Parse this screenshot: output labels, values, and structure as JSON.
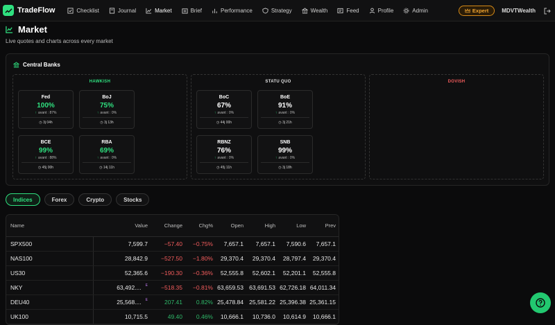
{
  "app": {
    "name": "TradeFlow",
    "user": "MDVTWealth",
    "badge": "Expert"
  },
  "nav": [
    {
      "label": "Checklist",
      "icon": "checklist-icon"
    },
    {
      "label": "Journal",
      "icon": "journal-icon"
    },
    {
      "label": "Market",
      "icon": "chart-line-icon",
      "active": true
    },
    {
      "label": "Brief",
      "icon": "brief-icon"
    },
    {
      "label": "Performance",
      "icon": "bar-chart-icon"
    },
    {
      "label": "Strategy",
      "icon": "shield-icon"
    },
    {
      "label": "Wealth",
      "icon": "bank-icon"
    },
    {
      "label": "Feed",
      "icon": "feed-icon"
    },
    {
      "label": "Profile",
      "icon": "user-icon"
    },
    {
      "label": "Admin",
      "icon": "gear-icon"
    }
  ],
  "page": {
    "title": "Market",
    "subtitle": "Live quotes and charts across every market"
  },
  "central_banks": {
    "title": "Central Banks",
    "columns": {
      "hawkish": {
        "label": "HAWKISH",
        "color": "#2fe07f"
      },
      "statu_quo": {
        "label": "STATU QUO",
        "color": "#e0e0e0"
      },
      "dovish": {
        "label": "DOVISH",
        "color": "#f25c5c"
      }
    },
    "banks": [
      {
        "name": "Fed",
        "pct": "100%",
        "avant": "avant : 87%",
        "time": "3j 04h",
        "column": "hawkish"
      },
      {
        "name": "BoJ",
        "pct": "75%",
        "avant": "avant : 0%",
        "time": "3j 13h",
        "column": "hawkish"
      },
      {
        "name": "BCE",
        "pct": "99%",
        "avant": "avant : 88%",
        "time": "45j 00h",
        "column": "hawkish"
      },
      {
        "name": "RBA",
        "pct": "69%",
        "avant": "avant : 0%",
        "time": "14j 11h",
        "column": "hawkish"
      },
      {
        "name": "BoC",
        "pct": "67%",
        "avant": "avant : 0%",
        "time": "44j 00h",
        "column": "statu_quo"
      },
      {
        "name": "BoE",
        "pct": "91%",
        "avant": "avant : 0%",
        "time": "3j 21h",
        "column": "statu_quo"
      },
      {
        "name": "RBNZ",
        "pct": "76%",
        "avant": "avant : 0%",
        "time": "45j 11h",
        "column": "statu_quo"
      },
      {
        "name": "SNB",
        "pct": "99%",
        "avant": "avant : 0%",
        "time": "3j 18h",
        "column": "statu_quo"
      }
    ]
  },
  "tabs": [
    "Indices",
    "Forex",
    "Crypto",
    "Stocks"
  ],
  "table": {
    "headers": [
      "Name",
      "Value",
      "Change",
      "Chg%",
      "Open",
      "High",
      "Low",
      "Prev"
    ],
    "rows": [
      {
        "name": "SPX500",
        "value": "7,599.7",
        "change": "−57.40",
        "chg_pct": "−0.75%",
        "open": "7,657.1",
        "high": "7,657.1",
        "low": "7,590.6",
        "prev": "7,657.1",
        "dir": "neg",
        "badge": ""
      },
      {
        "name": "NAS100",
        "value": "28,842.9",
        "change": "−527.50",
        "chg_pct": "−1.80%",
        "open": "29,370.4",
        "high": "29,370.4",
        "low": "28,797.4",
        "prev": "29,370.4",
        "dir": "neg",
        "badge": ""
      },
      {
        "name": "US30",
        "value": "52,365.6",
        "change": "−190.30",
        "chg_pct": "−0.36%",
        "open": "52,555.8",
        "high": "52,602.1",
        "low": "52,201.1",
        "prev": "52,555.8",
        "dir": "neg",
        "badge": ""
      },
      {
        "name": "NKY",
        "value": "63,492....",
        "change": "−518.35",
        "chg_pct": "−0.81%",
        "open": "63,659.53",
        "high": "63,691.53",
        "low": "62,726.18",
        "prev": "64,011.34",
        "dir": "neg",
        "badge": "E"
      },
      {
        "name": "DEU40",
        "value": "25,568....",
        "change": "207.41",
        "chg_pct": "0.82%",
        "open": "25,478.84",
        "high": "25,581.22",
        "low": "25,396.38",
        "prev": "25,361.15",
        "dir": "pos",
        "badge": "E"
      },
      {
        "name": "UK100",
        "value": "10,715.5",
        "change": "49.40",
        "chg_pct": "0.46%",
        "open": "10,666.1",
        "high": "10,736.0",
        "low": "10,614.9",
        "prev": "10,666.1",
        "dir": "pos",
        "badge": ""
      }
    ]
  }
}
